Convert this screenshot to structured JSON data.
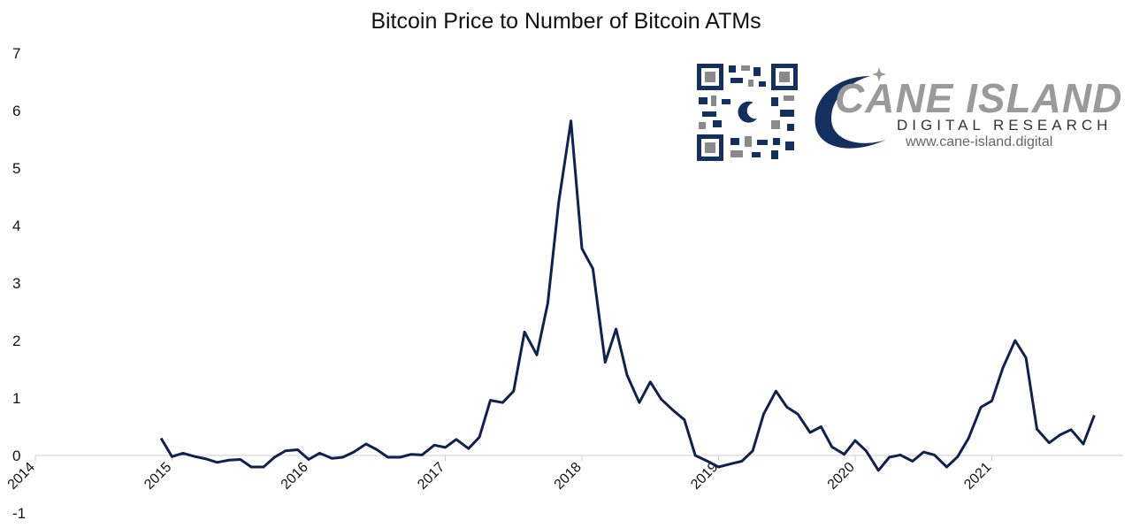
{
  "chart_data": {
    "type": "line",
    "title": "Bitcoin Price to Number of Bitcoin ATMs",
    "xlabel": "",
    "ylabel": "",
    "ylim": [
      -1,
      7
    ],
    "yticks": [
      "7",
      "6",
      "5",
      "4",
      "3",
      "2",
      "1",
      "0",
      "-1"
    ],
    "xtick_labels": [
      "2014",
      "2015",
      "2016",
      "2017",
      "2018",
      "2019",
      "2020",
      "2021"
    ],
    "grid": false,
    "line_color": "#0f2150",
    "series": [
      {
        "values": [
          [
            2014.92,
            0.3
          ],
          [
            2015.0,
            -0.02
          ],
          [
            2015.08,
            0.04
          ],
          [
            2015.17,
            -0.02
          ],
          [
            2015.25,
            -0.06
          ],
          [
            2015.33,
            -0.12
          ],
          [
            2015.42,
            -0.08
          ],
          [
            2015.5,
            -0.07
          ],
          [
            2015.58,
            -0.2
          ],
          [
            2015.67,
            -0.2
          ],
          [
            2015.75,
            -0.03
          ],
          [
            2015.83,
            0.08
          ],
          [
            2015.92,
            0.1
          ],
          [
            2016.0,
            -0.07
          ],
          [
            2016.08,
            0.04
          ],
          [
            2016.17,
            -0.05
          ],
          [
            2016.25,
            -0.03
          ],
          [
            2016.33,
            0.06
          ],
          [
            2016.42,
            0.2
          ],
          [
            2016.5,
            0.1
          ],
          [
            2016.58,
            -0.03
          ],
          [
            2016.67,
            -0.03
          ],
          [
            2016.75,
            0.02
          ],
          [
            2016.83,
            0.01
          ],
          [
            2016.92,
            0.18
          ],
          [
            2017.0,
            0.14
          ],
          [
            2017.08,
            0.28
          ],
          [
            2017.17,
            0.12
          ],
          [
            2017.25,
            0.32
          ],
          [
            2017.33,
            0.96
          ],
          [
            2017.42,
            0.92
          ],
          [
            2017.5,
            1.12
          ],
          [
            2017.58,
            2.15
          ],
          [
            2017.67,
            1.75
          ],
          [
            2017.75,
            2.65
          ],
          [
            2017.83,
            4.4
          ],
          [
            2017.92,
            5.82
          ],
          [
            2018.0,
            3.6
          ],
          [
            2018.08,
            3.25
          ],
          [
            2018.17,
            1.62
          ],
          [
            2018.25,
            2.2
          ],
          [
            2018.33,
            1.4
          ],
          [
            2018.42,
            0.92
          ],
          [
            2018.5,
            1.28
          ],
          [
            2018.58,
            0.98
          ],
          [
            2018.67,
            0.78
          ],
          [
            2018.75,
            0.62
          ],
          [
            2018.83,
            0.0
          ],
          [
            2018.92,
            -0.1
          ],
          [
            2019.0,
            -0.2
          ],
          [
            2019.08,
            -0.15
          ],
          [
            2019.17,
            -0.1
          ],
          [
            2019.25,
            0.08
          ],
          [
            2019.33,
            0.72
          ],
          [
            2019.42,
            1.12
          ],
          [
            2019.5,
            0.84
          ],
          [
            2019.58,
            0.72
          ],
          [
            2019.67,
            0.4
          ],
          [
            2019.75,
            0.5
          ],
          [
            2019.83,
            0.15
          ],
          [
            2019.92,
            0.02
          ],
          [
            2020.0,
            0.26
          ],
          [
            2020.08,
            0.08
          ],
          [
            2020.17,
            -0.26
          ],
          [
            2020.25,
            -0.03
          ],
          [
            2020.33,
            0.01
          ],
          [
            2020.42,
            -0.1
          ],
          [
            2020.5,
            0.06
          ],
          [
            2020.58,
            0.01
          ],
          [
            2020.67,
            -0.2
          ],
          [
            2020.75,
            -0.02
          ],
          [
            2020.83,
            0.3
          ],
          [
            2020.92,
            0.84
          ],
          [
            2021.0,
            0.95
          ],
          [
            2021.08,
            1.52
          ],
          [
            2021.17,
            2.0
          ],
          [
            2021.25,
            1.7
          ],
          [
            2021.33,
            0.46
          ],
          [
            2021.42,
            0.22
          ],
          [
            2021.5,
            0.36
          ],
          [
            2021.58,
            0.45
          ],
          [
            2021.67,
            0.2
          ],
          [
            2021.75,
            0.7
          ]
        ]
      }
    ]
  },
  "logo": {
    "name": "CANE ISLAND",
    "subtitle": "DIGITAL RESEARCH",
    "url": "www.cane-island.digital",
    "primary_color": "#14305f",
    "secondary_color": "#9a9a9a"
  }
}
